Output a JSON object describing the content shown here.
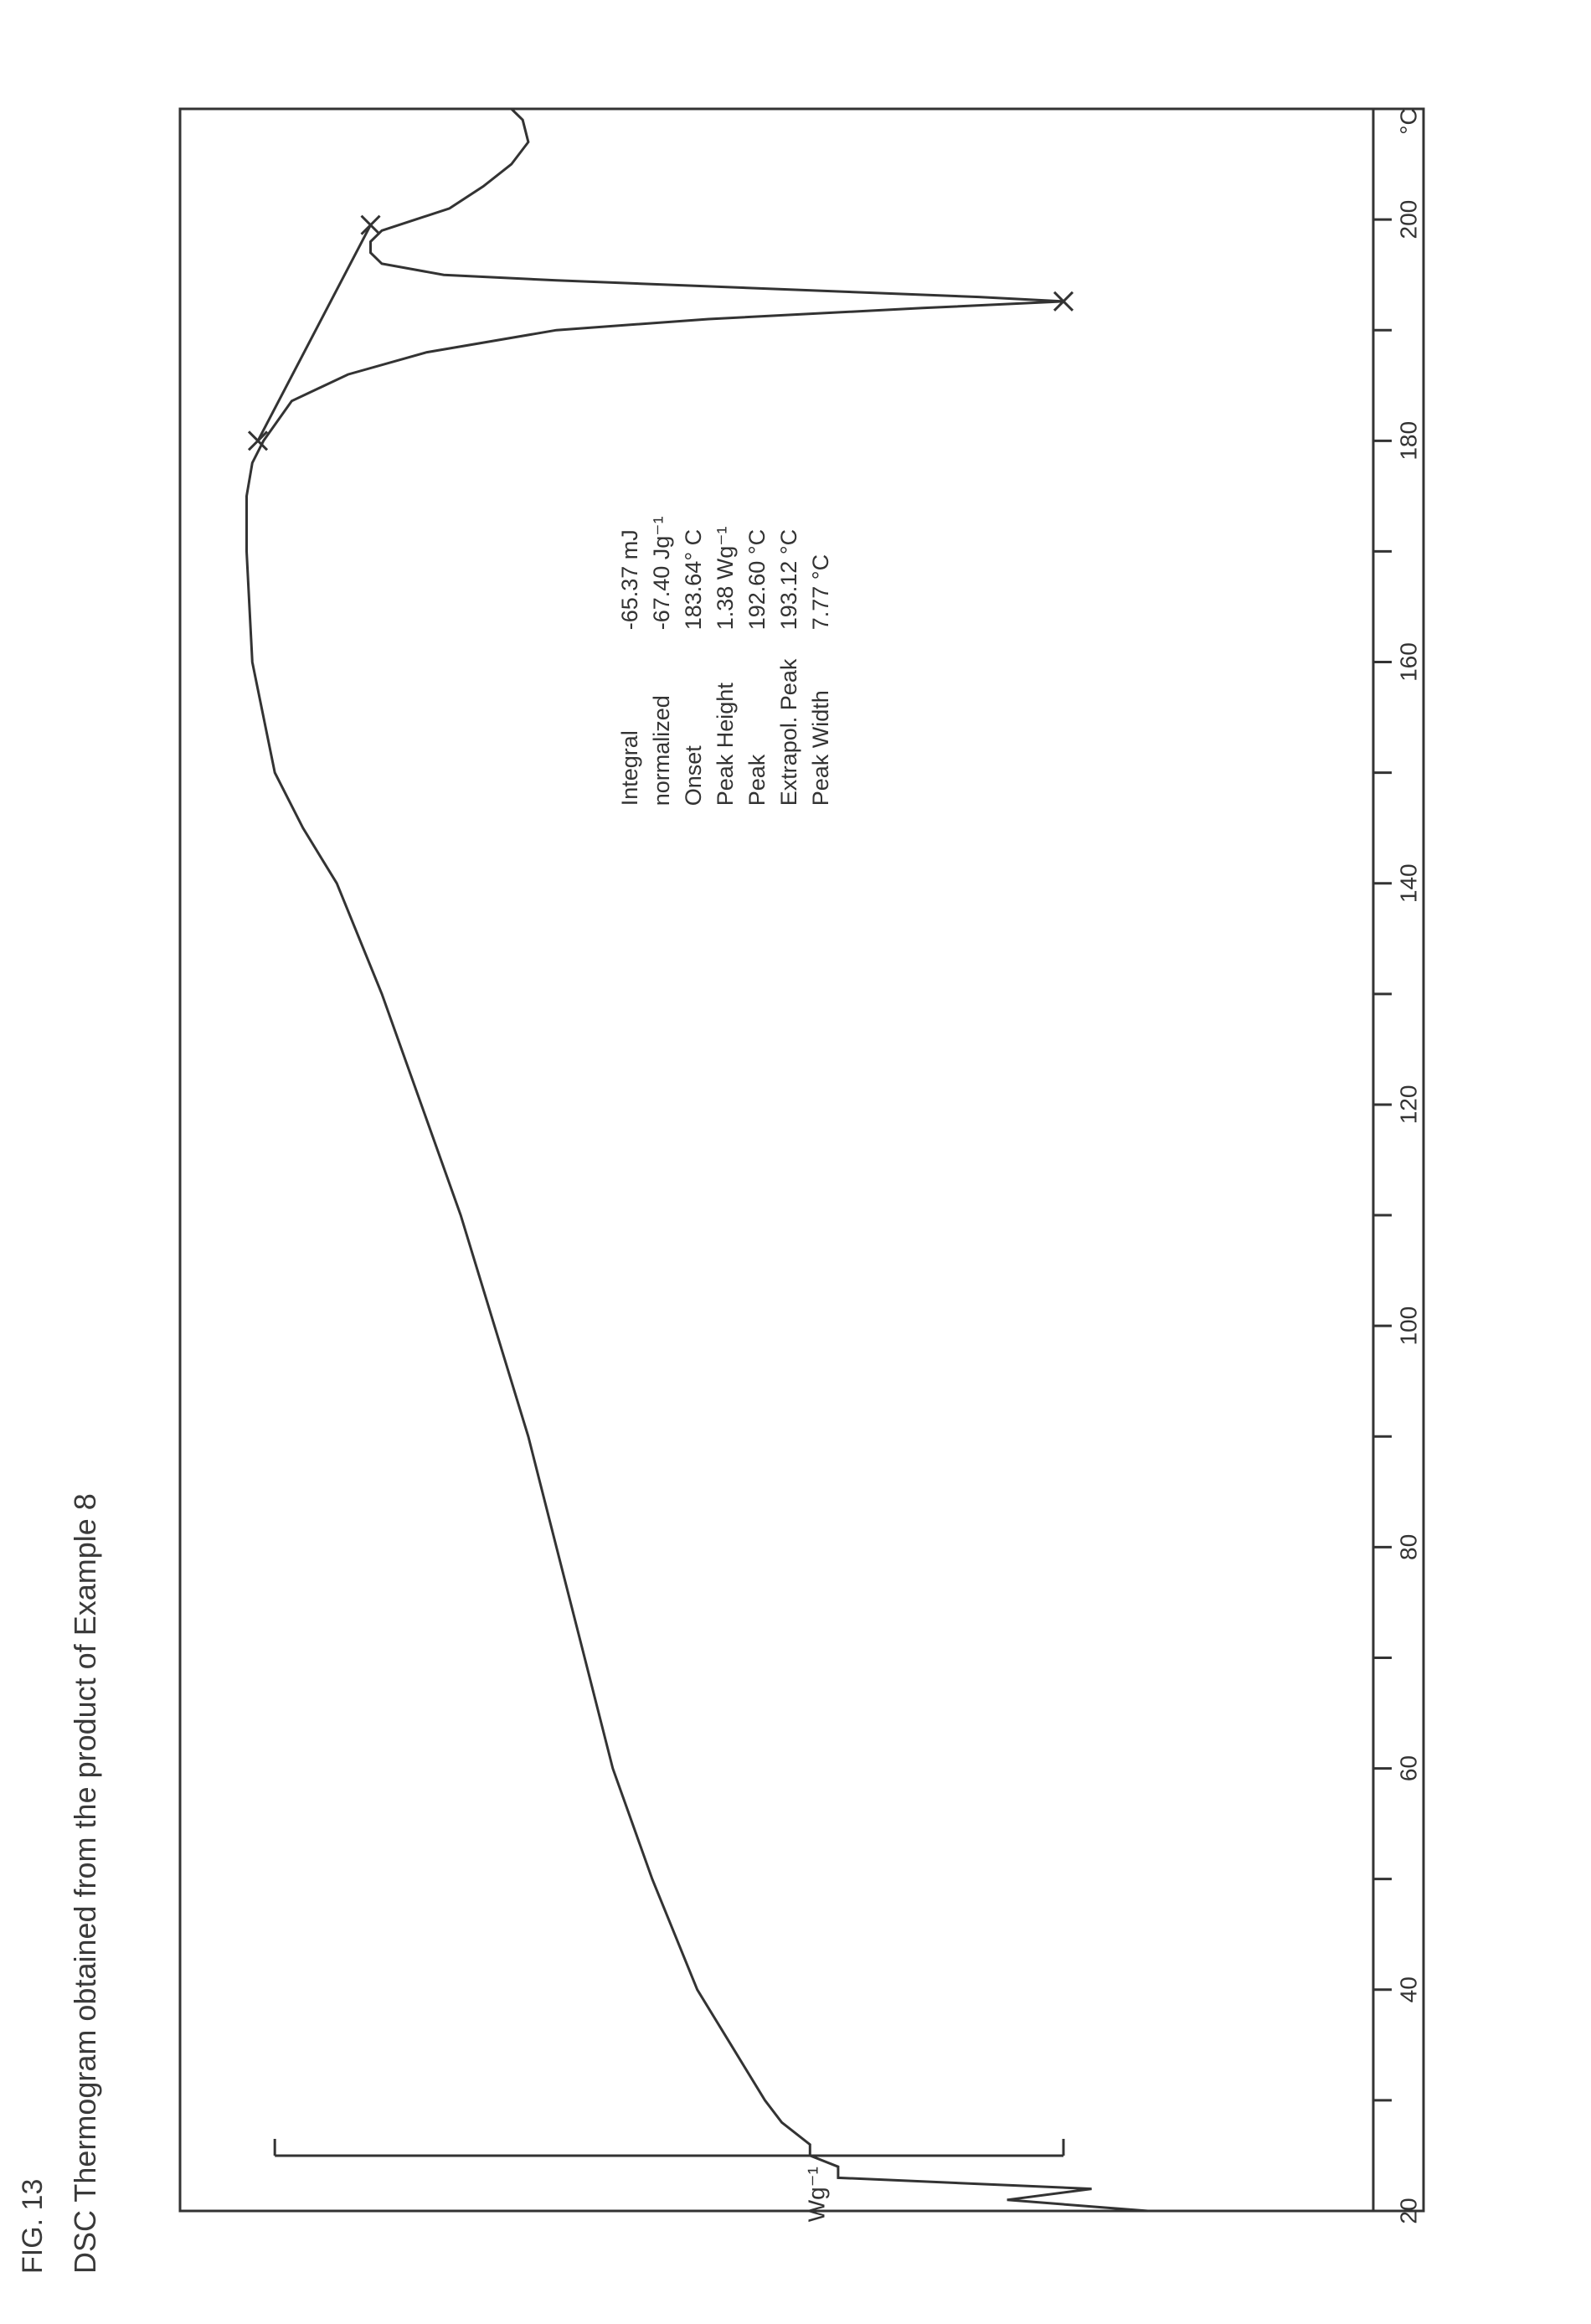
{
  "figure": {
    "label": "FIG. 13",
    "title": "DSC Thermogram obtained from the product of Example 8"
  },
  "chart_data": {
    "type": "line",
    "title": "DSC Thermogram obtained from the product of Example 8",
    "xlabel": "°C",
    "ylabel": "Wg^-1",
    "xlim": [
      20,
      210
    ],
    "ylim": [
      -0.4,
      1.8
    ],
    "grid": false,
    "x_ticks": [
      "20",
      "40",
      "60",
      "80",
      "100",
      "120",
      "140",
      "160",
      "180",
      "200"
    ],
    "x_unit": "°C",
    "y_scale_label": "Wg^-1",
    "series": [
      {
        "x": [
          20,
          21,
          22,
          23,
          24,
          25,
          26,
          28,
          30,
          35,
          40,
          50,
          60,
          70,
          80,
          90,
          100,
          110,
          120,
          130,
          140,
          145,
          150,
          160,
          170,
          175,
          178,
          180,
          183.6,
          186,
          188,
          190,
          191,
          192,
          192.6,
          193,
          193.5,
          194,
          194.5,
          195,
          196,
          197,
          198,
          199,
          200,
          201,
          203,
          205,
          207,
          209,
          210
        ],
        "y": [
          0.0,
          0.25,
          0.1,
          0.55,
          0.55,
          0.6,
          0.6,
          0.65,
          0.68,
          0.74,
          0.8,
          0.88,
          0.95,
          1.0,
          1.05,
          1.1,
          1.16,
          1.22,
          1.29,
          1.36,
          1.44,
          1.5,
          1.55,
          1.59,
          1.6,
          1.6,
          1.59,
          1.57,
          1.52,
          1.42,
          1.28,
          1.05,
          0.78,
          0.4,
          0.15,
          0.3,
          0.55,
          0.8,
          1.05,
          1.25,
          1.36,
          1.38,
          1.38,
          1.36,
          1.3,
          1.24,
          1.18,
          1.13,
          1.1,
          1.11,
          1.13
        ]
      }
    ],
    "baseline": {
      "x": [
        180,
        199.5
      ],
      "y": [
        1.58,
        1.38
      ]
    },
    "markers": [
      {
        "x": 180,
        "y": 1.58
      },
      {
        "x": 192.6,
        "y": 0.15
      },
      {
        "x": 199.5,
        "y": 1.38
      }
    ],
    "scale_bar_x": 25,
    "scale_bar_y": [
      0.15,
      1.55
    ],
    "scale_bar_y_label": "Wg^-1",
    "annotation": {
      "labels": [
        "Integral",
        "normalized",
        "Onset",
        "Peak Height",
        "Peak",
        "Extrapol. Peak",
        "Peak Width"
      ],
      "values": [
        "-65.37 mJ",
        "-67.40 Jg^-1",
        "183.64° C",
        "1.38 Wg^-1",
        "192.60 °C",
        "193.12 °C",
        "7.77 °C"
      ],
      "anchor_x": 147,
      "anchor_y": 0.92
    }
  }
}
